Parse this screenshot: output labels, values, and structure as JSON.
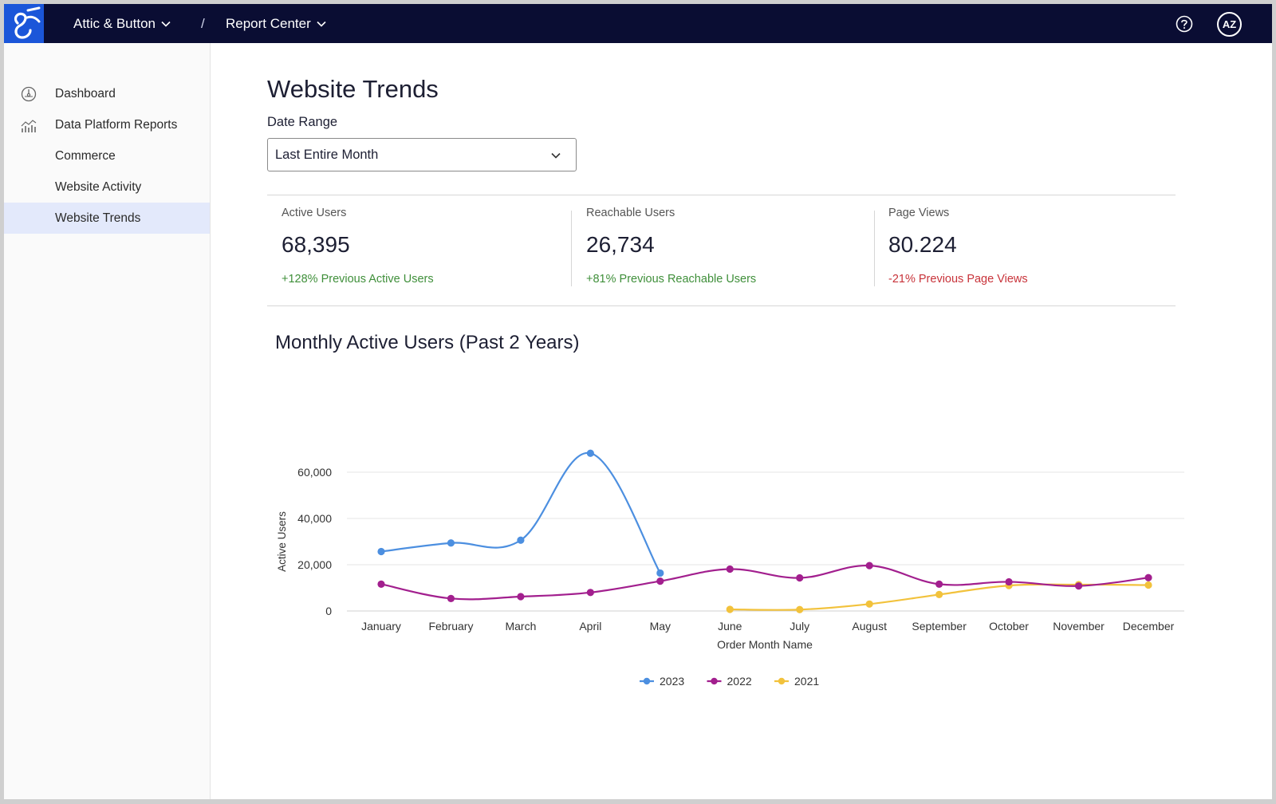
{
  "topbar": {
    "org": "Attic & Button",
    "separator": "/",
    "section": "Report Center",
    "avatar_initials": "AZ",
    "help_icon": "question-circle-icon",
    "logo_icon": "brand-logo-icon",
    "background": "#0a0d33",
    "logo_background": "#1b56d9"
  },
  "sidebar": {
    "items": [
      {
        "label": "Dashboard",
        "icon": "gauge-icon"
      },
      {
        "label": "Data Platform Reports",
        "icon": "bar-chart-icon"
      },
      {
        "label": "Commerce"
      },
      {
        "label": "Website Activity"
      },
      {
        "label": "Website Trends",
        "active": true
      }
    ],
    "active_color": "#e3e9fb"
  },
  "main": {
    "title": "Website Trends",
    "date_range": {
      "label": "Date Range",
      "value": "Last Entire Month"
    },
    "metrics": [
      {
        "label": "Active Users",
        "value": "68,395",
        "delta": "+128% Previous Active Users",
        "delta_color": "#3f8f3a"
      },
      {
        "label": "Reachable Users",
        "value": "26,734",
        "delta": "+81% Previous Reachable Users",
        "delta_color": "#3f8f3a"
      },
      {
        "label": "Page Views",
        "value": "80.224",
        "delta": "-21% Previous Page Views",
        "delta_color": "#c8333a"
      }
    ],
    "chart_title": "Monthly Active Users (Past 2 Years)"
  },
  "chart_data": {
    "type": "line",
    "title": "Monthly Active Users (Past 2 Years)",
    "xlabel": "Order Month Name",
    "ylabel": "Active Users",
    "categories": [
      "January",
      "February",
      "March",
      "April",
      "May",
      "June",
      "July",
      "August",
      "September",
      "October",
      "November",
      "December"
    ],
    "ylim": [
      0,
      70000
    ],
    "yticks": [
      0,
      20000,
      40000,
      60000
    ],
    "ytick_labels": [
      "0",
      "20,000",
      "40,000",
      "60,000"
    ],
    "grid": true,
    "legend_position": "bottom",
    "series": [
      {
        "name": "2023",
        "color": "#4c8fe0",
        "values": [
          25700,
          29400,
          30600,
          68200,
          16400,
          null,
          null,
          null,
          null,
          null,
          null,
          null
        ]
      },
      {
        "name": "2022",
        "color": "#a21f8e",
        "values": [
          11600,
          5400,
          6200,
          8000,
          12900,
          18100,
          14300,
          19600,
          11600,
          12600,
          10800,
          14400
        ]
      },
      {
        "name": "2021",
        "color": "#f2c23c",
        "values": [
          null,
          null,
          null,
          null,
          null,
          700,
          600,
          3000,
          7100,
          11000,
          11400,
          11200
        ]
      }
    ]
  }
}
